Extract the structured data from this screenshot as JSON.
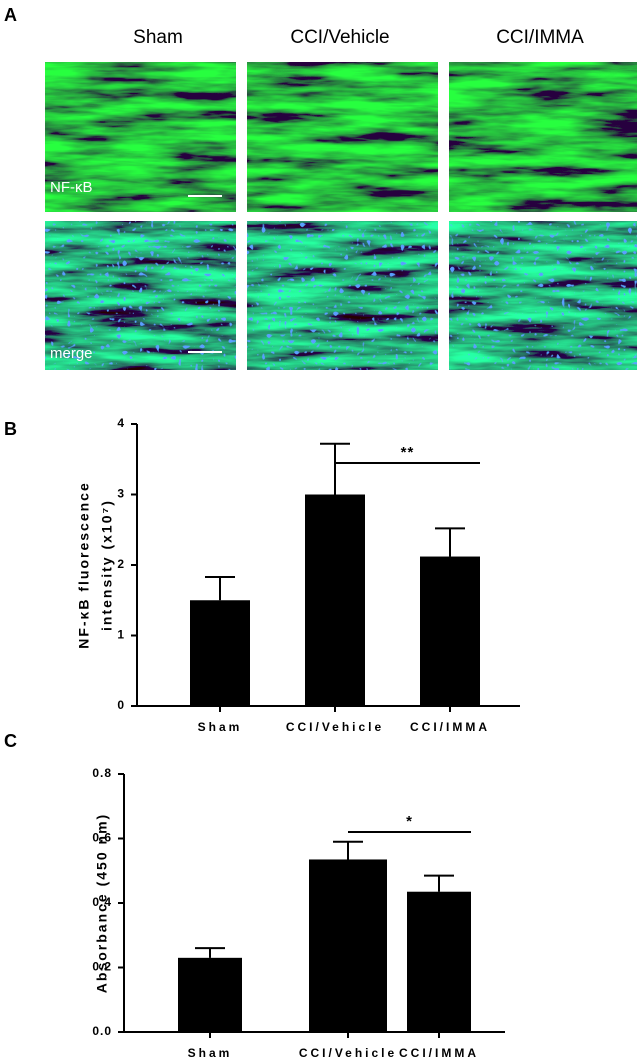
{
  "panel_labels": [
    "A",
    "B",
    "C"
  ],
  "micrographs": {
    "columns": [
      "Sham",
      "CCI/Vehicle",
      "CCI/IMMA"
    ],
    "rows": [
      "NF-κB",
      "merge"
    ]
  },
  "chart_data": [
    {
      "type": "bar",
      "ylabel": [
        "NF-κB fluorescence",
        "intensity (x10⁷)"
      ],
      "categories": [
        "Sham",
        "CCI/Vehicle",
        "CCI/IMMA"
      ],
      "values": [
        1.5,
        3.0,
        2.12
      ],
      "errors": [
        0.33,
        0.72,
        0.4
      ],
      "color": "#000000",
      "ylim": [
        0,
        4
      ],
      "yticks": [
        0,
        1,
        2,
        3,
        4
      ],
      "annotations": [
        {
          "text": "**",
          "between": [
            "CCI/Vehicle",
            "CCI/IMMA"
          ]
        }
      ]
    },
    {
      "type": "bar",
      "ylabel": [
        "Absorbance (450 nm)"
      ],
      "categories": [
        "Sham",
        "CCI/Vehicle",
        "CCI/IMMA"
      ],
      "values": [
        0.23,
        0.535,
        0.435
      ],
      "errors": [
        0.03,
        0.055,
        0.05
      ],
      "color": "#000000",
      "ylim": [
        0,
        0.8
      ],
      "yticks": [
        {
          "value": 0,
          "label": "0.0"
        },
        0.2,
        0.4,
        0.6,
        0.8
      ],
      "annotations": [
        {
          "text": "*",
          "between": [
            "CCI/Vehicle",
            "CCI/IMMA"
          ]
        }
      ]
    }
  ]
}
